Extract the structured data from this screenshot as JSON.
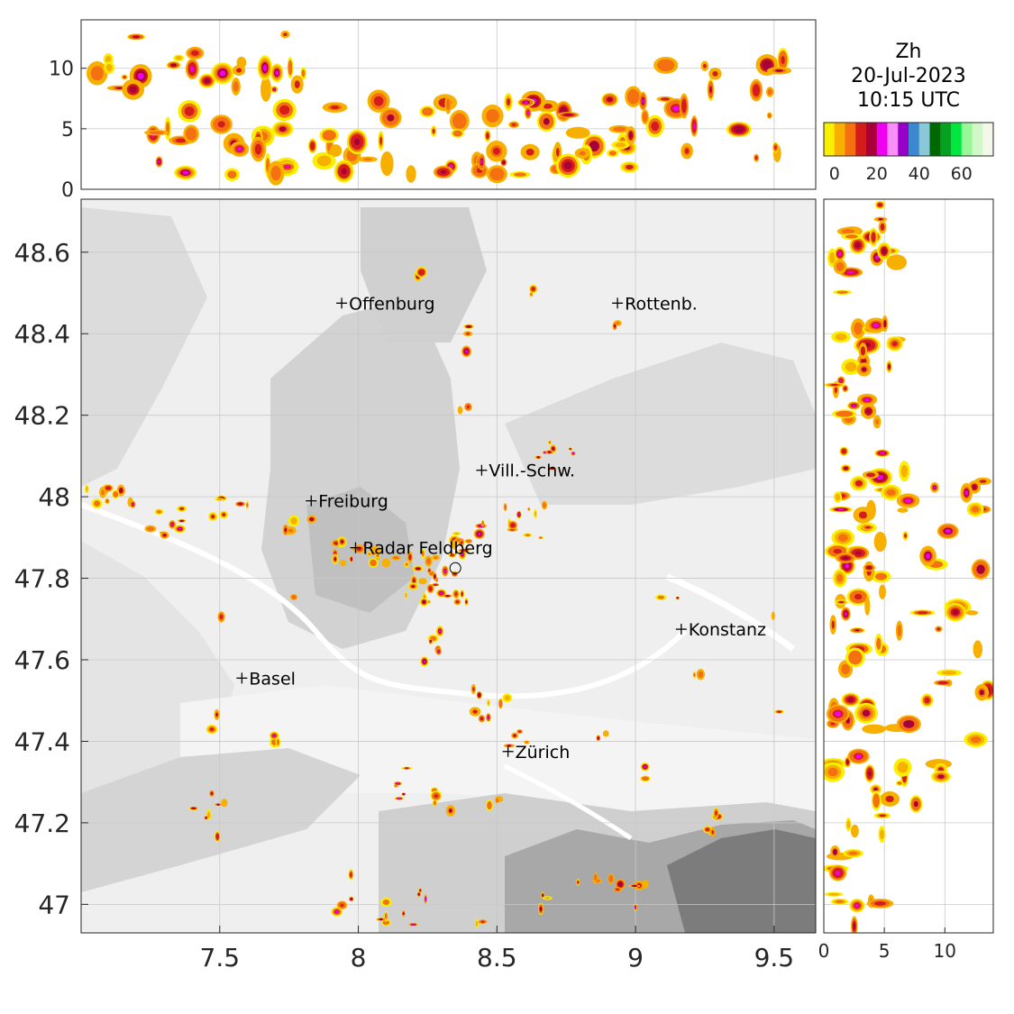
{
  "title": {
    "variable": "Zh",
    "date": "20-Jul-2023",
    "time": "10:15 UTC"
  },
  "colorbar": {
    "colors": [
      "#f8f000",
      "#f8b000",
      "#f47010",
      "#d41c1c",
      "#a80038",
      "#f000f0",
      "#f890f8",
      "#9800c8",
      "#3c88d0",
      "#88c8d8",
      "#006800",
      "#08a020",
      "#00e840",
      "#98f898",
      "#d0f8c8",
      "#f4f8e8"
    ],
    "range": [
      -5,
      75
    ],
    "ticks": [
      "0",
      "20",
      "40",
      "60"
    ],
    "tick_values": [
      0,
      20,
      40,
      60
    ]
  },
  "map": {
    "x_range": [
      7.0,
      9.65
    ],
    "y_range": [
      46.93,
      48.73
    ],
    "x_ticks": [
      "7.5",
      "8",
      "8.5",
      "9",
      "9.5"
    ],
    "x_tick_values": [
      7.5,
      8,
      8.5,
      9,
      9.5
    ],
    "y_ticks": [
      "48.6",
      "48.4",
      "48.2",
      "48",
      "47.8",
      "47.6",
      "47.4",
      "47.2",
      "47"
    ],
    "y_tick_values": [
      48.6,
      48.4,
      48.2,
      48.0,
      47.8,
      47.6,
      47.4,
      47.2,
      47.0
    ],
    "cities": [
      {
        "name": "Offenburg",
        "lon": 7.94,
        "lat": 48.475
      },
      {
        "name": "Rottenb.",
        "lon": 8.935,
        "lat": 48.475
      },
      {
        "name": "Vill.-Schw.",
        "lon": 8.445,
        "lat": 48.065
      },
      {
        "name": "Freiburg",
        "lon": 7.83,
        "lat": 47.99
      },
      {
        "name": "Radar Feldberg",
        "lon": 7.99,
        "lat": 47.875
      },
      {
        "name": "Konstanz",
        "lon": 9.165,
        "lat": 47.675
      },
      {
        "name": "Basel",
        "lon": 7.58,
        "lat": 47.555
      },
      {
        "name": "Zürich",
        "lon": 8.54,
        "lat": 47.375
      }
    ],
    "radar_site": {
      "lon": 8.35,
      "lat": 47.825
    }
  },
  "top_panel": {
    "y_range": [
      0,
      14
    ],
    "y_ticks": [
      "0",
      "5",
      "10"
    ],
    "y_tick_values": [
      0,
      5,
      10
    ]
  },
  "side_panel": {
    "x_range": [
      0,
      14
    ],
    "x_ticks": [
      "0",
      "5",
      "10"
    ],
    "x_tick_values": [
      0,
      5,
      10
    ]
  }
}
